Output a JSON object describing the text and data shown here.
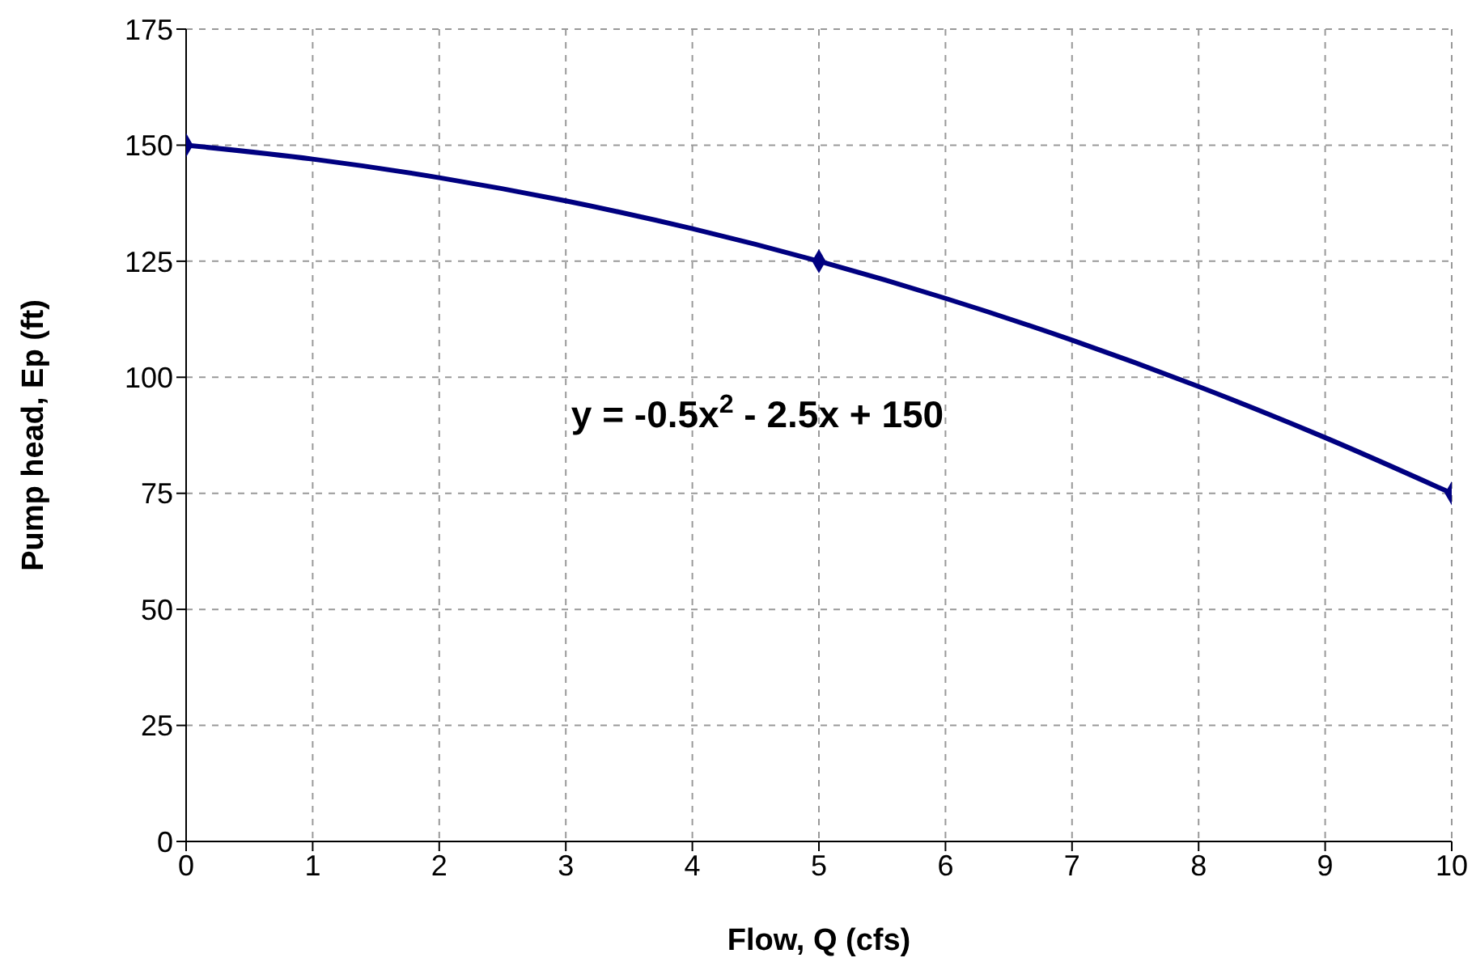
{
  "chart_data": {
    "type": "scatter",
    "xlabel": "Flow, Q (cfs)",
    "ylabel": "Pump head, Ep (ft)",
    "xlim": [
      0,
      10
    ],
    "xticks": [
      0,
      1,
      2,
      3,
      4,
      5,
      6,
      7,
      8,
      9,
      10
    ],
    "ylim": [
      0,
      175
    ],
    "yticks": [
      0,
      25,
      50,
      75,
      100,
      125,
      150,
      175
    ],
    "grid": true,
    "annotations": [
      "y = -0.5x$^{2}$ - 2.5x + 150"
    ],
    "series": [
      {
        "type": "line",
        "color": "#000080",
        "x": [
          0,
          1,
          2,
          3,
          4,
          5,
          6,
          7,
          8,
          9,
          10
        ],
        "values": [
          150,
          147,
          143,
          138,
          132,
          125,
          117,
          108,
          98,
          87,
          75
        ],
        "marker": "none",
        "line_style": "solid"
      },
      {
        "color": "#000080",
        "x": [
          0,
          5,
          10
        ],
        "values": [
          150,
          125,
          75
        ],
        "marker": "diamond"
      }
    ]
  }
}
